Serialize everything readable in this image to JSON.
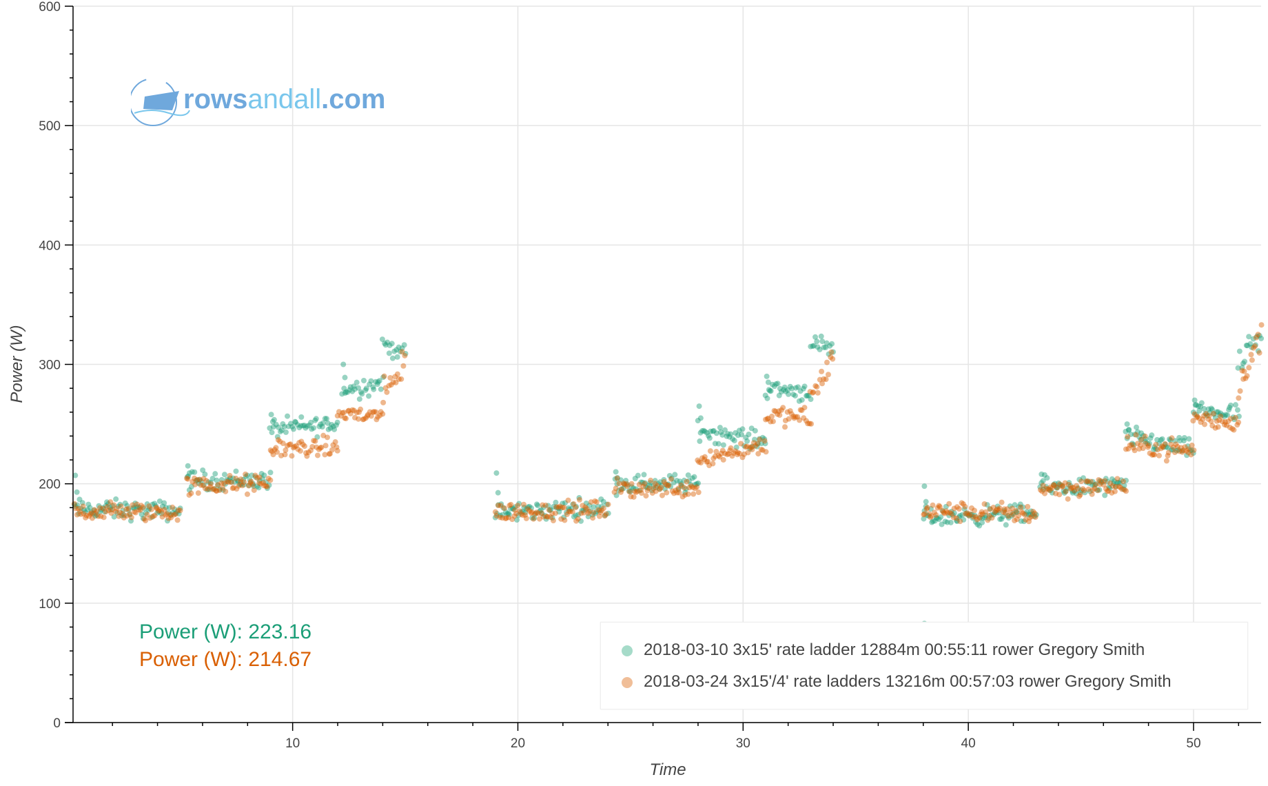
{
  "logo": {
    "part1": "rows",
    "part2": "andall",
    "part3": ".com"
  },
  "readouts": [
    {
      "label": "Power (W): 223.16",
      "color": "#1b9e77"
    },
    {
      "label": "Power (W): 214.67",
      "color": "#d95f02"
    }
  ],
  "chart_data": {
    "type": "scatter",
    "title": "",
    "xlabel": "Time",
    "ylabel": "Power (W)",
    "xlim": [
      0.25,
      53
    ],
    "ylim": [
      0,
      600
    ],
    "xticks": [
      10,
      20,
      30,
      40,
      50
    ],
    "yticks": [
      0,
      100,
      200,
      300,
      400,
      500,
      600
    ],
    "grid": true,
    "legend_position": "bottom-right",
    "series": [
      {
        "name": "2018-03-10 3x15' rate ladder 12884m 00:55:11 rower Gregory Smith",
        "color": "#1b9e77",
        "legend_color": "#a6dbc9",
        "segments": [
          {
            "x": [
              0.3,
              5.0
            ],
            "y": [
              179,
              177
            ],
            "spike": 207
          },
          {
            "x": [
              5.3,
              9.0
            ],
            "y": [
              203,
              203
            ],
            "spike": 215
          },
          {
            "x": [
              9.0,
              12.0
            ],
            "y": [
              246,
              250
            ],
            "spike": 258
          },
          {
            "x": [
              12.2,
              14.0
            ],
            "y": [
              278,
              285
            ],
            "spike": 300
          },
          {
            "x": [
              14.0,
              15.0
            ],
            "y": [
              318,
              308
            ]
          },
          {
            "x": [
              19.0,
              24.0
            ],
            "y": [
              176,
              180
            ],
            "spike": 209
          },
          {
            "x": [
              24.3,
              28.0
            ],
            "y": [
              200,
              200
            ],
            "spike": 210
          },
          {
            "x": [
              28.0,
              31.0
            ],
            "y": [
              245,
              235
            ],
            "spike": 265
          },
          {
            "x": [
              31.0,
              33.0
            ],
            "y": [
              280,
              277
            ],
            "spike": 290
          },
          {
            "x": [
              33.0,
              34.0
            ],
            "y": [
              316,
              312
            ]
          },
          {
            "x": [
              38.0,
              43.0
            ],
            "y": [
              172,
              175
            ],
            "spike": 198
          },
          {
            "x": [
              43.2,
              47.0
            ],
            "y": [
              197,
              198
            ],
            "spike": 208
          },
          {
            "x": [
              47.0,
              50.0
            ],
            "y": [
              240,
              228
            ],
            "spike": 250
          },
          {
            "x": [
              50.0,
              52.0
            ],
            "y": [
              262,
              258
            ],
            "spike": 270
          },
          {
            "x": [
              52.0,
              53.0
            ],
            "y": [
              298,
              322
            ]
          }
        ],
        "outliers": [
          {
            "x": 38.05,
            "y": 83
          }
        ]
      },
      {
        "name": "2018-03-24 3x15'/4' rate ladders 13216m 00:57:03 rower Gregory Smith",
        "color": "#d95f02",
        "legend_color": "#f0be98",
        "segments": [
          {
            "x": [
              0.3,
              5.0
            ],
            "y": [
              177,
              176
            ]
          },
          {
            "x": [
              5.3,
              9.0
            ],
            "y": [
              198,
              200
            ]
          },
          {
            "x": [
              9.0,
              12.0
            ],
            "y": [
              230,
              230
            ]
          },
          {
            "x": [
              12.0,
              14.0
            ],
            "y": [
              259,
              257
            ]
          },
          {
            "x": [
              14.0,
              15.0
            ],
            "y": [
              270,
              305
            ]
          },
          {
            "x": [
              19.0,
              24.0
            ],
            "y": [
              176,
              178
            ]
          },
          {
            "x": [
              24.3,
              28.0
            ],
            "y": [
              196,
              197
            ]
          },
          {
            "x": [
              28.0,
              31.0
            ],
            "y": [
              220,
              233
            ]
          },
          {
            "x": [
              31.0,
              33.0
            ],
            "y": [
              257,
              255
            ]
          },
          {
            "x": [
              33.0,
              34.0
            ],
            "y": [
              270,
              305
            ]
          },
          {
            "x": [
              38.0,
              43.0
            ],
            "y": [
              177,
              175
            ]
          },
          {
            "x": [
              43.2,
              47.0
            ],
            "y": [
              196,
              198
            ]
          },
          {
            "x": [
              47.0,
              50.0
            ],
            "y": [
              232,
              228
            ]
          },
          {
            "x": [
              50.0,
              52.0
            ],
            "y": [
              255,
              250
            ]
          },
          {
            "x": [
              52.0,
              53.0
            ],
            "y": [
              285,
              322
            ]
          }
        ],
        "outliers": []
      }
    ]
  }
}
